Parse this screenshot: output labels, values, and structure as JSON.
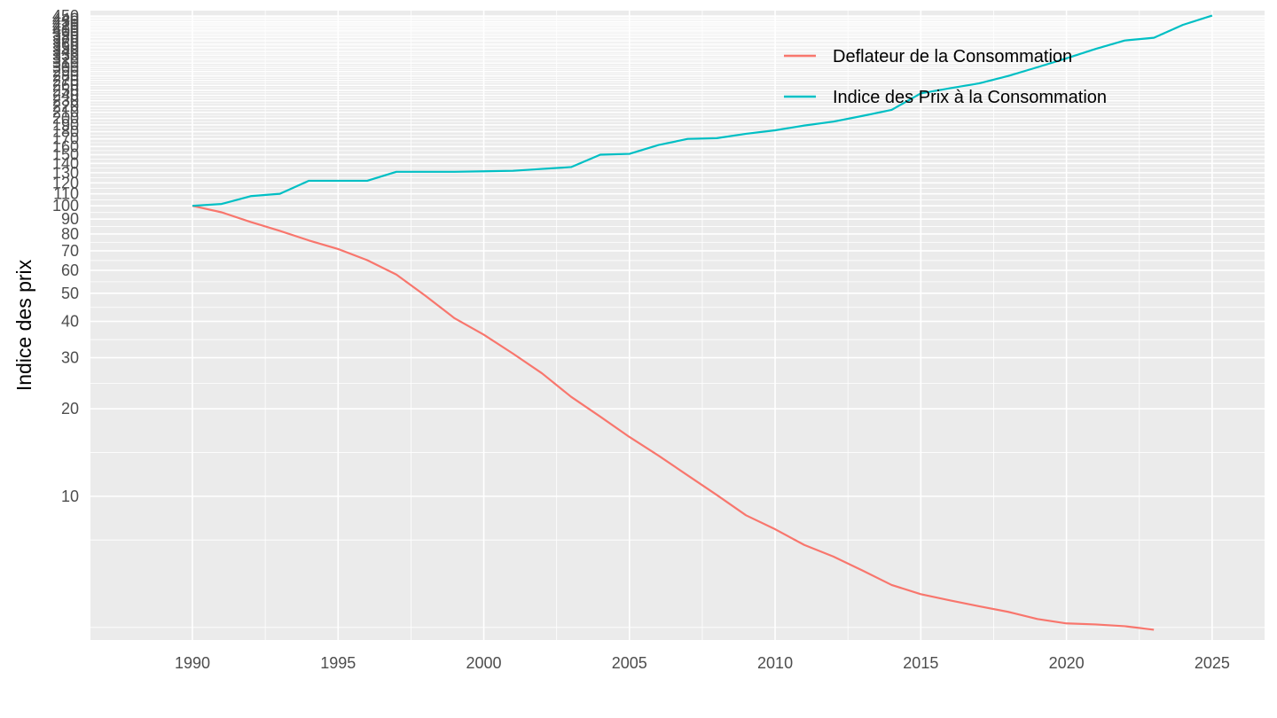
{
  "chart_data": {
    "type": "line",
    "title": "",
    "xlabel": "",
    "ylabel": "Indice des prix",
    "y_scale": "log",
    "xlim": [
      1986.5,
      2026.8
    ],
    "ylim": [
      3.2,
      470
    ],
    "x_ticks": [
      1990,
      1995,
      2000,
      2005,
      2010,
      2015,
      2020,
      2025
    ],
    "y_ticks": [
      10,
      20,
      30,
      40,
      50,
      60,
      70,
      80,
      90,
      100,
      110,
      120,
      130,
      140,
      150,
      160,
      170,
      180,
      190,
      200,
      210,
      220,
      230,
      240,
      250,
      260,
      270,
      280,
      290,
      300,
      310,
      320,
      330,
      340,
      350,
      360,
      370,
      380,
      390,
      400,
      410,
      420,
      430,
      440,
      450
    ],
    "grid": true,
    "legend_position": "top-right",
    "series": [
      {
        "name": "Deflateur de la Consommation",
        "color": "#F8766D",
        "x": [
          1990,
          1991,
          1992,
          1993,
          1994,
          1995,
          1996,
          1997,
          1998,
          1999,
          2000,
          2001,
          2002,
          2003,
          2004,
          2005,
          2006,
          2007,
          2008,
          2009,
          2010,
          2011,
          2012,
          2013,
          2014,
          2015,
          2016,
          2017,
          2018,
          2019,
          2020,
          2021,
          2022,
          2023
        ],
        "values": [
          100,
          95,
          88,
          82,
          76,
          71,
          65,
          58,
          49,
          41,
          36,
          31,
          26.5,
          22,
          18.8,
          16,
          13.8,
          11.8,
          10.1,
          8.6,
          7.7,
          6.8,
          6.2,
          5.55,
          4.95,
          4.6,
          4.38,
          4.18,
          4.0,
          3.78,
          3.65,
          3.62,
          3.57,
          3.47
        ]
      },
      {
        "name": "Indice des Prix à la Consommation",
        "color": "#00BFC4",
        "x": [
          1990,
          1991,
          1992,
          1993,
          1994,
          1995,
          1996,
          1997,
          1998,
          1999,
          2000,
          2001,
          2002,
          2003,
          2004,
          2005,
          2006,
          2007,
          2008,
          2009,
          2010,
          2011,
          2012,
          2013,
          2014,
          2015,
          2016,
          2017,
          2018,
          2019,
          2020,
          2021,
          2022,
          2023,
          2024,
          2025
        ],
        "values": [
          100,
          101.5,
          108,
          110,
          122,
          122,
          122,
          131,
          131,
          131,
          131.5,
          132,
          134,
          136,
          150,
          151,
          162,
          170,
          171,
          177,
          182,
          189,
          195,
          204,
          214,
          244,
          254,
          264,
          280,
          300,
          322,
          347,
          371,
          379,
          420,
          452
        ]
      }
    ]
  }
}
